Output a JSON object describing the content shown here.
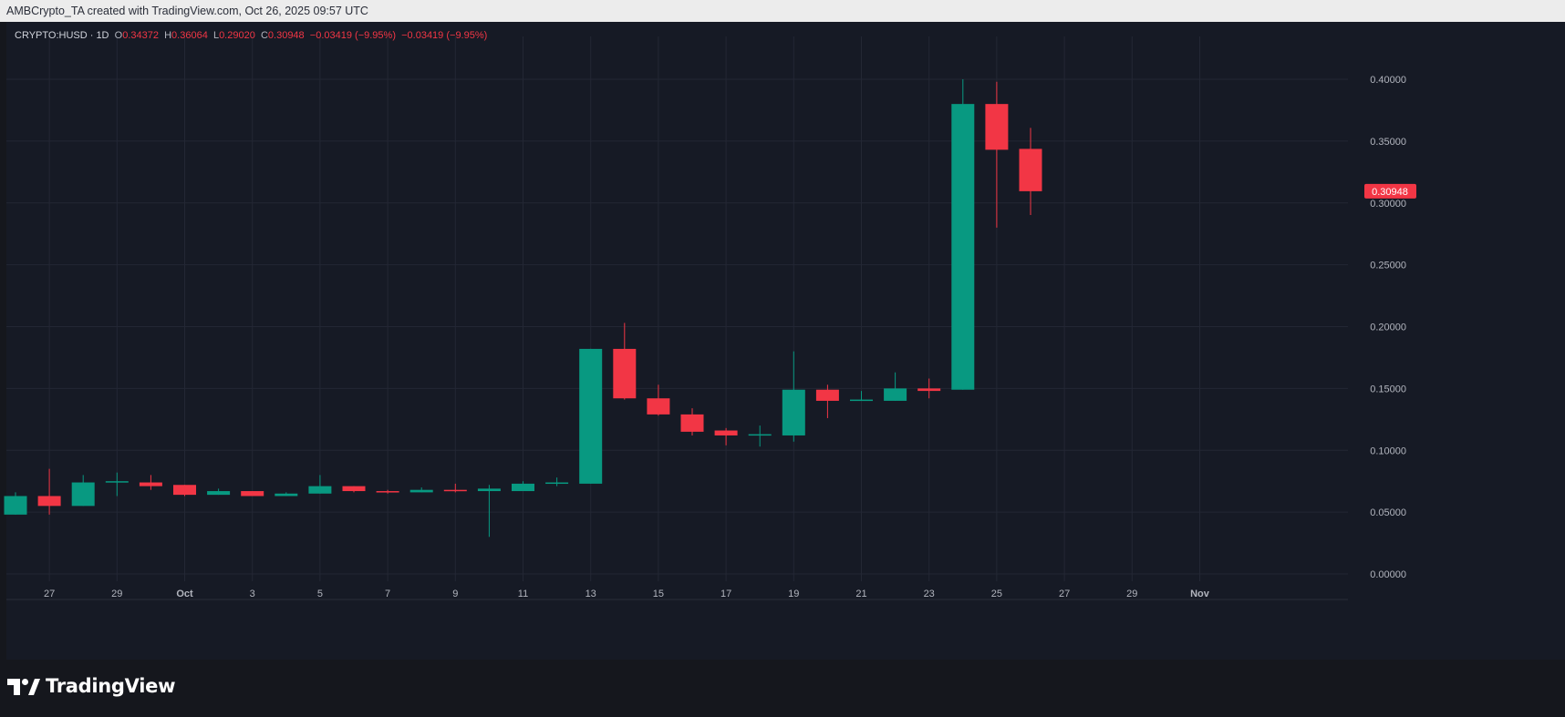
{
  "header": {
    "credit": "AMBCrypto_TA created with TradingView.com, Oct 26, 2025 09:57 UTC"
  },
  "legend": {
    "symbol": "CRYPTO:HUSD · 1D",
    "o_label": "O",
    "o_value": "0.34372",
    "h_label": "H",
    "h_value": "0.36064",
    "l_label": "L",
    "l_value": "0.29020",
    "c_label": "C",
    "c_value": "0.30948",
    "change1": "−0.03419 (−9.95%)",
    "change2": "−0.03419 (−9.95%)"
  },
  "colors": {
    "up": "#089981",
    "down": "#f23645",
    "grid": "#232734",
    "axis_text": "#b2b5be",
    "background": "#161a25"
  },
  "brand": {
    "name": "TradingView",
    "icon": "tradingview-logo-icon"
  },
  "chart_data": {
    "type": "candlestick",
    "ylim": [
      0,
      0.4
    ],
    "y_ticks": [
      "0.40000",
      "0.35000",
      "0.30000",
      "0.25000",
      "0.20000",
      "0.15000",
      "0.10000",
      "0.05000",
      "0.00000"
    ],
    "x_ticks": [
      "27",
      "29",
      "Oct",
      "3",
      "5",
      "7",
      "9",
      "11",
      "13",
      "15",
      "17",
      "19",
      "21",
      "23",
      "25",
      "27",
      "29",
      "Nov"
    ],
    "last_price_label": "0.30948",
    "last_price": 0.30948,
    "candles": [
      {
        "o": 0.048,
        "h": 0.066,
        "l": 0.048,
        "c": 0.063
      },
      {
        "o": 0.063,
        "h": 0.085,
        "l": 0.048,
        "c": 0.055
      },
      {
        "o": 0.055,
        "h": 0.08,
        "l": 0.055,
        "c": 0.074
      },
      {
        "o": 0.074,
        "h": 0.082,
        "l": 0.063,
        "c": 0.075
      },
      {
        "o": 0.074,
        "h": 0.08,
        "l": 0.068,
        "c": 0.071
      },
      {
        "o": 0.072,
        "h": 0.072,
        "l": 0.063,
        "c": 0.064
      },
      {
        "o": 0.064,
        "h": 0.069,
        "l": 0.064,
        "c": 0.067
      },
      {
        "o": 0.067,
        "h": 0.067,
        "l": 0.063,
        "c": 0.063
      },
      {
        "o": 0.063,
        "h": 0.066,
        "l": 0.063,
        "c": 0.065
      },
      {
        "o": 0.065,
        "h": 0.08,
        "l": 0.065,
        "c": 0.071
      },
      {
        "o": 0.071,
        "h": 0.071,
        "l": 0.066,
        "c": 0.067
      },
      {
        "o": 0.067,
        "h": 0.068,
        "l": 0.065,
        "c": 0.066
      },
      {
        "o": 0.066,
        "h": 0.07,
        "l": 0.066,
        "c": 0.068
      },
      {
        "o": 0.068,
        "h": 0.073,
        "l": 0.066,
        "c": 0.067
      },
      {
        "o": 0.067,
        "h": 0.072,
        "l": 0.03,
        "c": 0.069
      },
      {
        "o": 0.067,
        "h": 0.075,
        "l": 0.067,
        "c": 0.073
      },
      {
        "o": 0.073,
        "h": 0.078,
        "l": 0.071,
        "c": 0.074
      },
      {
        "o": 0.073,
        "h": 0.182,
        "l": 0.073,
        "c": 0.182
      },
      {
        "o": 0.182,
        "h": 0.203,
        "l": 0.141,
        "c": 0.142
      },
      {
        "o": 0.142,
        "h": 0.153,
        "l": 0.128,
        "c": 0.129
      },
      {
        "o": 0.129,
        "h": 0.134,
        "l": 0.112,
        "c": 0.115
      },
      {
        "o": 0.116,
        "h": 0.118,
        "l": 0.104,
        "c": 0.112
      },
      {
        "o": 0.112,
        "h": 0.12,
        "l": 0.103,
        "c": 0.113
      },
      {
        "o": 0.112,
        "h": 0.18,
        "l": 0.107,
        "c": 0.149
      },
      {
        "o": 0.149,
        "h": 0.153,
        "l": 0.126,
        "c": 0.14
      },
      {
        "o": 0.14,
        "h": 0.148,
        "l": 0.14,
        "c": 0.141
      },
      {
        "o": 0.14,
        "h": 0.163,
        "l": 0.14,
        "c": 0.15
      },
      {
        "o": 0.15,
        "h": 0.158,
        "l": 0.142,
        "c": 0.148
      },
      {
        "o": 0.149,
        "h": 0.4,
        "l": 0.149,
        "c": 0.38
      },
      {
        "o": 0.38,
        "h": 0.398,
        "l": 0.28,
        "c": 0.343
      },
      {
        "o": 0.34372,
        "h": 0.36064,
        "l": 0.2902,
        "c": 0.30948
      }
    ]
  }
}
